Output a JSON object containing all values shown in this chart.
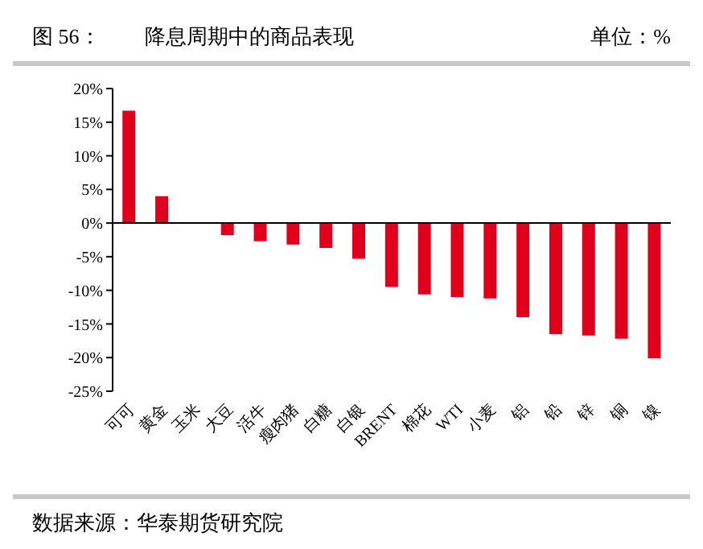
{
  "chart_data": {
    "type": "bar",
    "title": "降息周期中的商品表现",
    "annotations": [
      "图 56：",
      "单位：%",
      "数据来源：华泰期货研究院"
    ],
    "categories": [
      "可可",
      "黄金",
      "玉米",
      "大豆",
      "活牛",
      "瘦肉猪",
      "白糖",
      "白银",
      "BRENT",
      "棉花",
      "WTI",
      "小麦",
      "铝",
      "铅",
      "锌",
      "铜",
      "镍"
    ],
    "values": [
      16.7,
      4.0,
      0,
      -1.8,
      -2.7,
      -3.2,
      -3.7,
      -5.3,
      -9.5,
      -10.6,
      -11.0,
      -11.2,
      -14.0,
      -16.5,
      -16.7,
      -17.2,
      -20.1
    ],
    "color": "#e0001b",
    "ylim": [
      -25,
      20
    ],
    "yticks": [
      {
        "value": 20,
        "label": "20%"
      },
      {
        "value": 15,
        "label": "15%"
      },
      {
        "value": 10,
        "label": "10%"
      },
      {
        "value": 5,
        "label": "5%"
      },
      {
        "value": 0,
        "label": "0%"
      },
      {
        "value": -5,
        "label": "-5%"
      },
      {
        "value": -10,
        "label": "-10%"
      },
      {
        "value": -15,
        "label": "-15%"
      },
      {
        "value": -20,
        "label": "-20%"
      },
      {
        "value": -25,
        "label": "-25%"
      }
    ]
  }
}
